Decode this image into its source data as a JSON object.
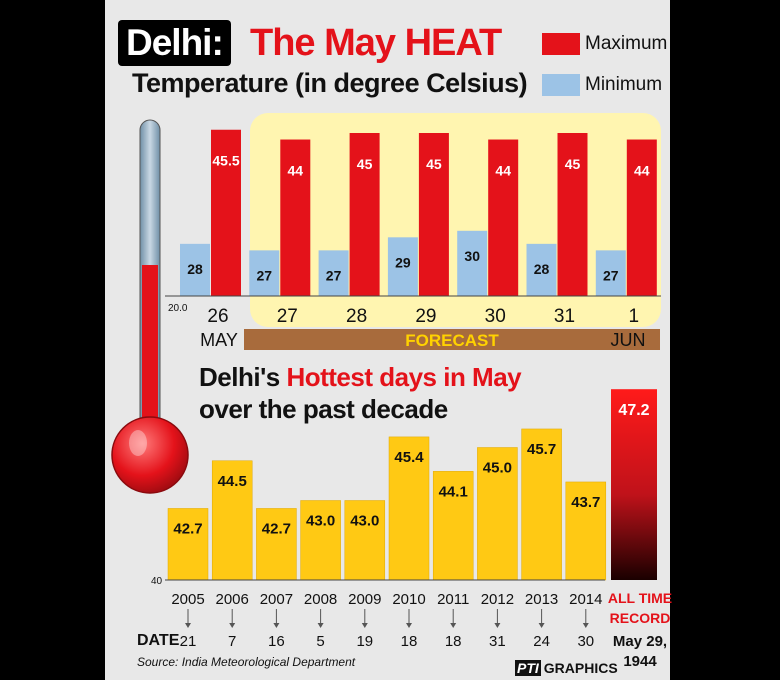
{
  "header": {
    "title_city": "Delhi:",
    "title_main": "The May HEAT",
    "subtitle": "Temperature (in degree Celsius)"
  },
  "legend": {
    "max_label": "Maximum",
    "min_label": "Minimum",
    "max_color": "#e4121a",
    "min_color": "#9cc3e6"
  },
  "chart_data": [
    {
      "type": "bar",
      "title": "Temperature (in degree Celsius)",
      "categories": [
        "26",
        "27",
        "28",
        "29",
        "30",
        "31",
        "1"
      ],
      "month_labels": {
        "start": "MAY",
        "end": "JUN"
      },
      "forecast_label": "FORECAST",
      "axis_min_label": "20.0",
      "series": [
        {
          "name": "Maximum",
          "values": [
            45.5,
            44,
            45,
            45,
            44,
            45,
            44
          ],
          "labels": [
            "45.5",
            "44",
            "45",
            "45",
            "44",
            "45",
            "44"
          ]
        },
        {
          "name": "Minimum",
          "values": [
            28,
            27,
            27,
            29,
            30,
            28,
            27
          ],
          "labels": [
            "28",
            "27",
            "27",
            "29",
            "30",
            "28",
            "27"
          ]
        }
      ]
    },
    {
      "type": "bar",
      "title_prefix": "Delhi's",
      "title_highlight": "Hottest days in May",
      "title_line2": "over the past decade",
      "axis_min_label": "40",
      "categories": [
        "2005",
        "2006",
        "2007",
        "2008",
        "2009",
        "2010",
        "2011",
        "2012",
        "2013",
        "2014"
      ],
      "values": [
        42.7,
        44.5,
        42.7,
        43.0,
        43.0,
        45.4,
        44.1,
        45.0,
        45.7,
        43.7
      ],
      "labels": [
        "42.7",
        "44.5",
        "42.7",
        "43.0",
        "43.0",
        "45.4",
        "44.1",
        "45.0",
        "45.7",
        "43.7"
      ],
      "dates": [
        "21",
        "7",
        "16",
        "5",
        "19",
        "18",
        "18",
        "31",
        "24",
        "30"
      ],
      "record": {
        "value": 47.2,
        "label_value": "47.2",
        "label_line1": "ALL TIME",
        "label_line2": "RECORD",
        "date_line1": "May 29,",
        "date_line2": "1944"
      }
    }
  ],
  "footer": {
    "date_label": "DATE",
    "source": "Source: India Meteorological Department",
    "credit_mark": "PTI",
    "credit_text": "GRAPHICS"
  }
}
